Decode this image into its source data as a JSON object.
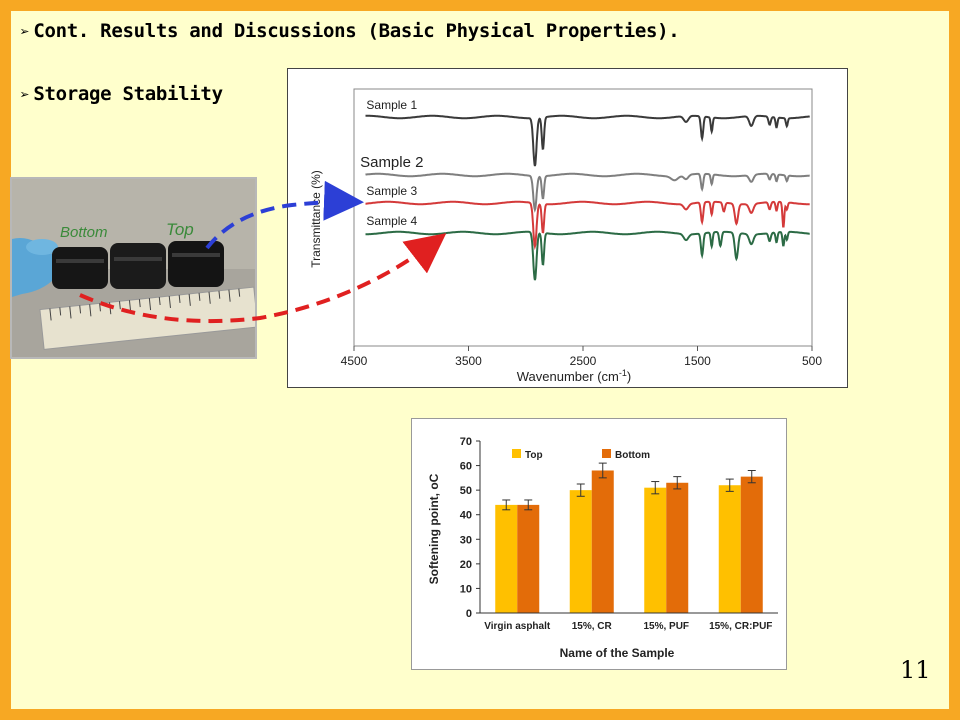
{
  "slide": {
    "bullet1": "Cont. Results and Discussions (Basic Physical Properties).",
    "bullet2": "Storage Stability",
    "bullet_marker": "➢",
    "page_number": "11"
  },
  "photo": {
    "label_bottom": "Bottom",
    "label_top": "Top"
  },
  "ftir_chart": {
    "type": "line",
    "xlabel": "Wavenumber (cm",
    "xlabel_sup": "-1",
    "xlabel_close": ")",
    "ylabel": "Transmittance (%)",
    "x_ticks": [
      "4500",
      "3500",
      "2500",
      "1500",
      "500"
    ],
    "xlim": [
      4500,
      500
    ],
    "series": [
      {
        "name": "Sample 1",
        "color": "#3a3a3a"
      },
      {
        "name": "Sample 2",
        "color": "#7f7f7f"
      },
      {
        "name": "Sample 3",
        "color": "#d43a3a"
      },
      {
        "name": "Sample 4",
        "color": "#2c6b45"
      }
    ]
  },
  "chart_data": {
    "type": "bar",
    "xlabel": "Name of the Sample",
    "ylabel": "Softening point, oC",
    "ylim": [
      0,
      70
    ],
    "y_ticks": [
      "0",
      "10",
      "20",
      "30",
      "40",
      "50",
      "60",
      "70"
    ],
    "categories": [
      "Virgin asphalt",
      "15%, CR",
      "15%, PUF",
      "15%, CR:PUF"
    ],
    "series": [
      {
        "name": "Top",
        "color": "#ffc000",
        "values": [
          44,
          50,
          51,
          52
        ],
        "errors": [
          2,
          2.5,
          2.5,
          2.5
        ]
      },
      {
        "name": "Bottom",
        "color": "#e36c09",
        "values": [
          44,
          58,
          53,
          55.5
        ],
        "errors": [
          2,
          3,
          2.5,
          2.5
        ]
      }
    ],
    "legend": "top-left",
    "grid": false
  }
}
